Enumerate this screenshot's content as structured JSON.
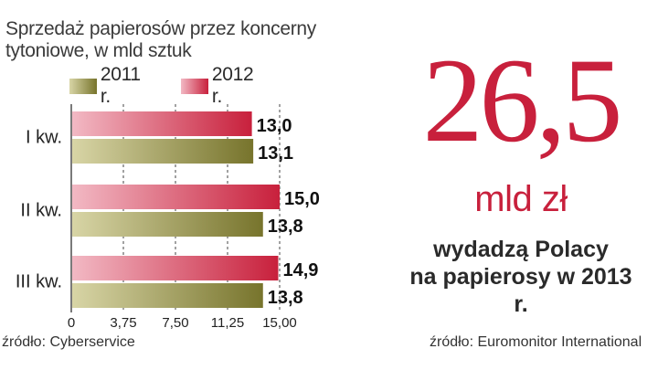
{
  "chart_data": {
    "type": "bar",
    "orientation": "horizontal",
    "title": "Sprzedaż papierosów przez koncerny tytoniowe, w mld sztuk",
    "categories": [
      "I kw.",
      "II kw.",
      "III kw."
    ],
    "series": [
      {
        "name": "2012 r.",
        "values": [
          13.0,
          15.0,
          14.9
        ],
        "value_labels": [
          "13,0",
          "15,0",
          "14,9"
        ],
        "color_light": "#f2b9c4",
        "color_dark": "#c8203c"
      },
      {
        "name": "2011 r.",
        "values": [
          13.1,
          13.8,
          13.8
        ],
        "value_labels": [
          "13,1",
          "13,8",
          "13,8"
        ],
        "color_light": "#d8d5a6",
        "color_dark": "#77742c"
      }
    ],
    "xlim": [
      0,
      15
    ],
    "x_ticks": [
      0,
      3.75,
      7.5,
      11.25,
      15
    ],
    "x_tick_labels": [
      "0",
      "3,75",
      "7,50",
      "11,25",
      "15,00"
    ],
    "grid": "vertical dashed",
    "legend": "top"
  },
  "source_left": "źródło: Cyberservice",
  "highlight": {
    "number": "26,5",
    "unit": "mld zł",
    "caption_line1": "wydadzą Polacy",
    "caption_line2": "na papierosy w 2013 r.",
    "number_color": "#c8203c"
  },
  "source_right": "źródło: Euromonitor International"
}
